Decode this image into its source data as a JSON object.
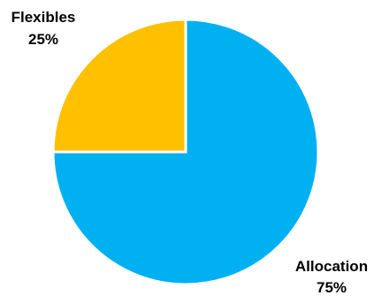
{
  "chart_data": {
    "type": "pie",
    "title": "",
    "legend": "none",
    "start_angle_deg": 0,
    "direction": "clockwise",
    "slices": [
      {
        "name": "Allocation",
        "value": 75,
        "label": "75%",
        "color": "#00B0F0"
      },
      {
        "name": "Flexibles",
        "value": 25,
        "label": "25%",
        "color": "#FFC000"
      }
    ]
  }
}
